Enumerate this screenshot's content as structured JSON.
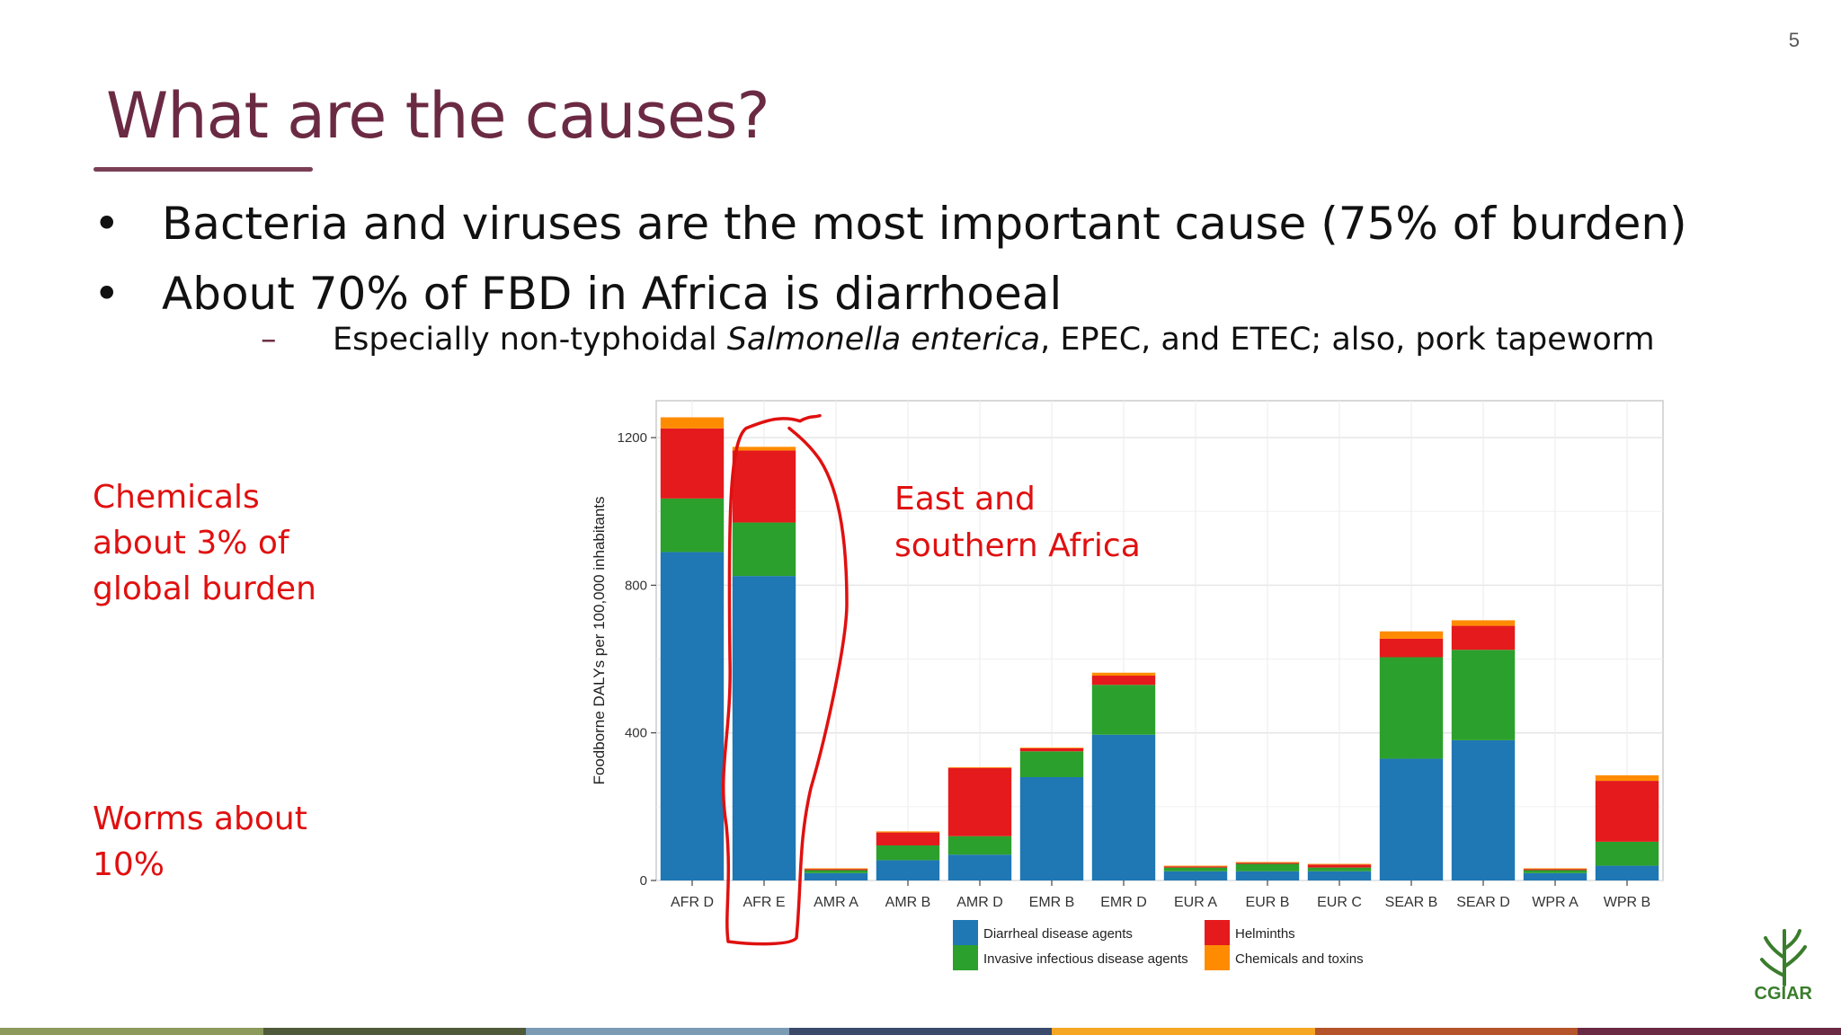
{
  "slide_number": "5",
  "title": "What are the causes?",
  "bullets": [
    "Bacteria and viruses are the most important cause (75% of burden)",
    "About 70% of FBD in Africa is diarrhoeal"
  ],
  "sub_bullet": {
    "before": "Especially non-typhoidal ",
    "italic": "Salmonella enterica",
    "after": ", EPEC, and ETEC; also, pork tapeworm"
  },
  "notes": {
    "chemicals": "Chemicals\nabout 3% of\nglobal burden",
    "worms": "Worms about\n10%"
  },
  "annotation": "East and\nsouthern Africa",
  "logo_text": "CGIAR",
  "colors": {
    "title": "#6b2a43",
    "annotation": "#e01010",
    "diarrheal": "#1f77b4",
    "invasive": "#2ca02c",
    "helminths": "#e41a1c",
    "chemicals": "#ff8c00"
  },
  "bottom_bar_colors": [
    "#8c9a5b",
    "#4f5a3a",
    "#7b9bb5",
    "#3b4a6b",
    "#f5a623",
    "#b5532a",
    "#6b2a43"
  ],
  "chart_data": {
    "type": "bar",
    "stacked": true,
    "categories": [
      "AFR D",
      "AFR E",
      "AMR A",
      "AMR B",
      "AMR D",
      "EMR B",
      "EMR D",
      "EUR A",
      "EUR B",
      "EUR C",
      "SEAR B",
      "SEAR D",
      "WPR A",
      "WPR B"
    ],
    "series": [
      {
        "name": "Diarrheal disease agents",
        "color": "#1f77b4",
        "values": [
          890,
          825,
          20,
          55,
          70,
          280,
          395,
          25,
          25,
          25,
          330,
          380,
          20,
          40
        ]
      },
      {
        "name": "Invasive infectious disease agents",
        "color": "#2ca02c",
        "values": [
          145,
          145,
          8,
          40,
          50,
          70,
          135,
          10,
          20,
          10,
          275,
          245,
          8,
          65
        ]
      },
      {
        "name": "Helminths",
        "color": "#e41a1c",
        "values": [
          190,
          195,
          3,
          35,
          185,
          8,
          25,
          3,
          3,
          8,
          50,
          65,
          3,
          165
        ]
      },
      {
        "name": "Chemicals and toxins",
        "color": "#ff8c00",
        "values": [
          30,
          10,
          2,
          3,
          2,
          2,
          8,
          2,
          2,
          2,
          20,
          15,
          2,
          15
        ]
      }
    ],
    "ylabel": "Foodborne DALYs per 100,000 inhabitants",
    "xlabel": "",
    "ylim": [
      0,
      1300
    ],
    "yticks": [
      0,
      400,
      800,
      1200
    ],
    "grid": true,
    "legend": "bottom"
  }
}
